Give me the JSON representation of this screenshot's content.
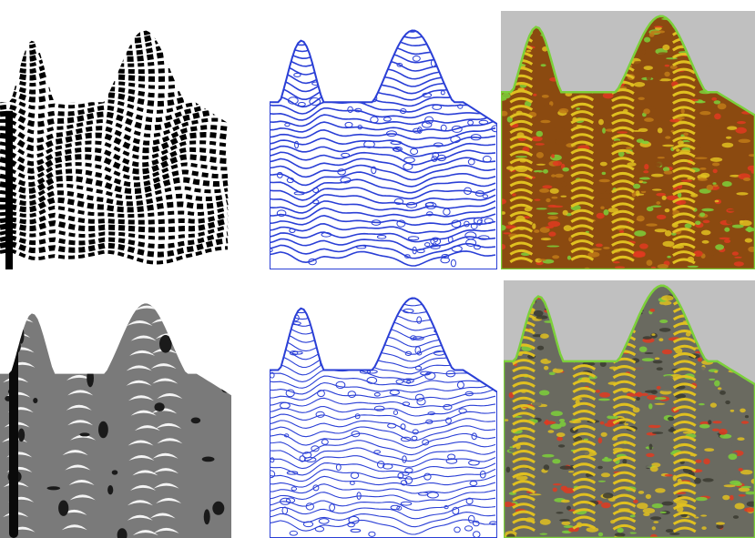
{
  "figure": {
    "panels": [
      {
        "id": "binary-stripes",
        "style": "binary",
        "fg": "#000000",
        "bg": "#ffffff"
      },
      {
        "id": "blue-contours-top",
        "style": "contours",
        "fg": "#2a3fd6",
        "bg": "#ffffff"
      },
      {
        "id": "heat-overlay-top",
        "style": "heat",
        "bg": "#c0c0c0",
        "colors": [
          "#8b4a10",
          "#c07a18",
          "#e0c020",
          "#7cd03a",
          "#e03a20"
        ]
      },
      {
        "id": "gray-smooth",
        "style": "gray",
        "fg": "#7a7a7a",
        "bg": "#ffffff"
      },
      {
        "id": "blue-contours-bottom",
        "style": "contours-thin",
        "fg": "#2a3fd6",
        "bg": "#ffffff"
      },
      {
        "id": "heat-overlay-bottom",
        "style": "heat-gray",
        "bg": "#c0c0c0",
        "colors": [
          "#6a6a60",
          "#3a3a30",
          "#e0c020",
          "#7cd03a",
          "#e03a20"
        ]
      }
    ]
  }
}
